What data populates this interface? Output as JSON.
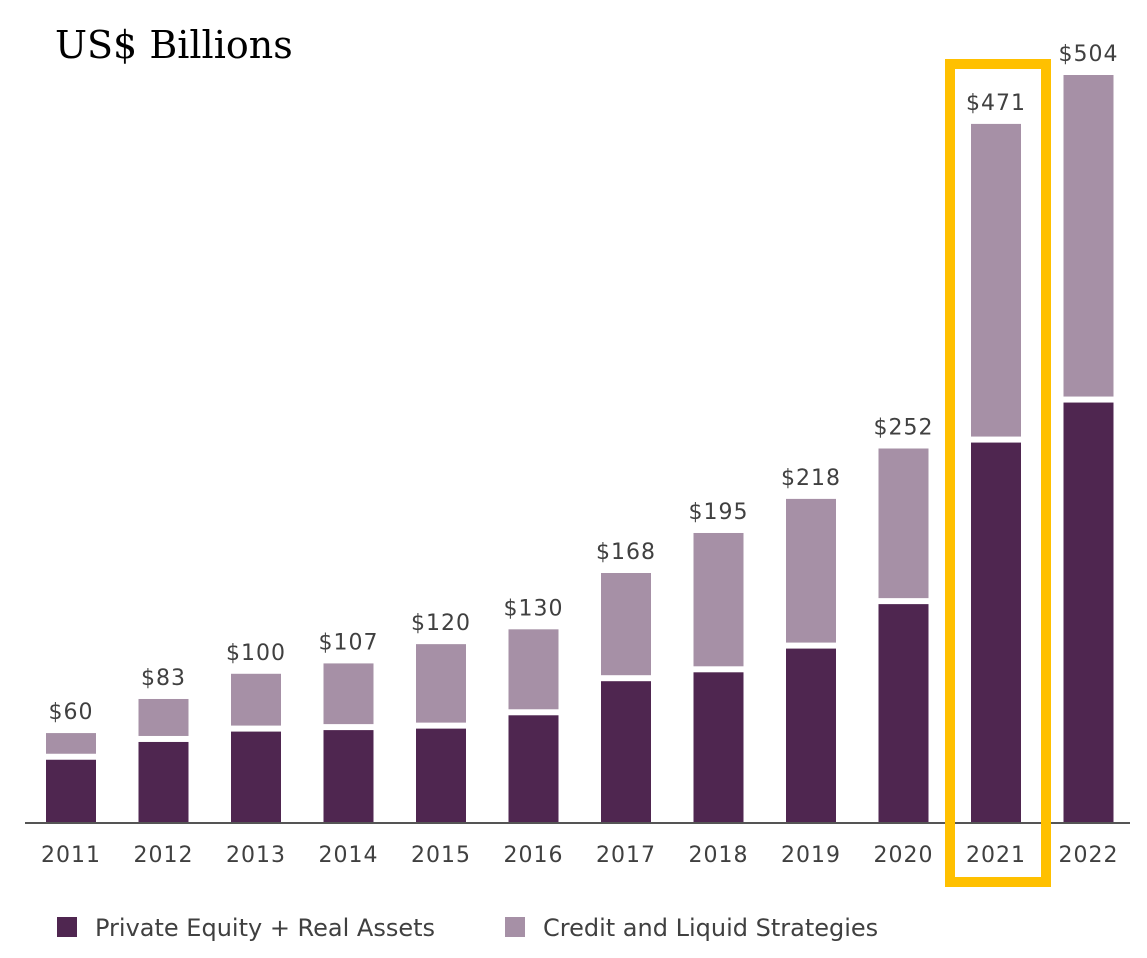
{
  "chart_data": {
    "type": "bar",
    "stacked": true,
    "title": "US$ Billions",
    "xlabel": "",
    "ylabel": "",
    "ylim": [
      0,
      504
    ],
    "grid": false,
    "legend_position": "bottom-left",
    "categories": [
      "2011",
      "2012",
      "2013",
      "2014",
      "2015",
      "2016",
      "2017",
      "2018",
      "2019",
      "2020",
      "2021",
      "2022"
    ],
    "series": [
      {
        "name": "Private Equity + Real Assets",
        "color": "#4f2650",
        "values": [
          42,
          54,
          61,
          62,
          63,
          72,
          95,
          101,
          117,
          147,
          256,
          283
        ]
      },
      {
        "name": "Credit and Liquid Strategies",
        "color": "#a690a6",
        "values": [
          18,
          29,
          39,
          45,
          57,
          58,
          73,
          94,
          101,
          105,
          215,
          221
        ]
      }
    ],
    "totals": [
      60,
      83,
      100,
      107,
      120,
      130,
      168,
      195,
      218,
      252,
      471,
      504
    ],
    "total_labels": [
      "$60",
      "$83",
      "$100",
      "$107",
      "$120",
      "$130",
      "$168",
      "$195",
      "$218",
      "$252",
      "$471",
      "$504"
    ],
    "highlight": {
      "category": "2021",
      "color": "#ffc000"
    }
  }
}
